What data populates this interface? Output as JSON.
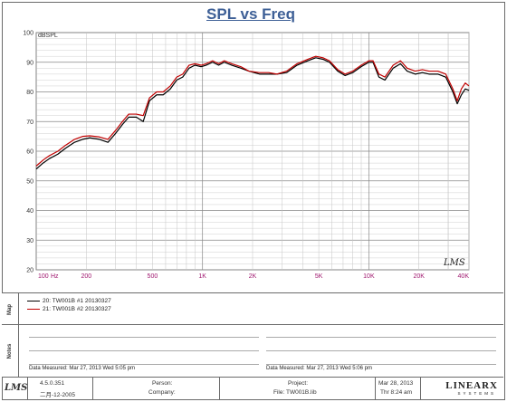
{
  "chart_data": {
    "type": "line",
    "title": "SPL vs Freq",
    "ylabel": "dBSPL",
    "xscale": "log",
    "xlim": [
      100,
      40000
    ],
    "ylim": [
      20,
      100
    ],
    "ytick_step": 10,
    "yticks": [
      "20",
      "30",
      "40",
      "50",
      "60",
      "70",
      "80",
      "90",
      "100"
    ],
    "xticks": [
      {
        "label": "100",
        "value": 100
      },
      {
        "label": "200",
        "value": 200
      },
      {
        "label": "500",
        "value": 500
      },
      {
        "label": "1K",
        "value": 1000
      },
      {
        "label": "2K",
        "value": 2000
      },
      {
        "label": "5K",
        "value": 5000
      },
      {
        "label": "10K",
        "value": 10000
      },
      {
        "label": "20K",
        "value": 20000
      },
      {
        "label": "40K",
        "value": 40000
      }
    ],
    "x_unit_label": "Hz",
    "grid": true,
    "series": [
      {
        "name": "20: TW001B  #1  20130327",
        "color": "#000000",
        "points": [
          [
            100,
            54
          ],
          [
            110,
            56
          ],
          [
            120,
            57.5
          ],
          [
            135,
            59
          ],
          [
            150,
            61
          ],
          [
            170,
            63
          ],
          [
            190,
            64
          ],
          [
            210,
            64.5
          ],
          [
            240,
            64
          ],
          [
            270,
            63
          ],
          [
            300,
            66
          ],
          [
            330,
            69
          ],
          [
            360,
            71.5
          ],
          [
            400,
            71.5
          ],
          [
            440,
            70
          ],
          [
            480,
            77
          ],
          [
            530,
            79
          ],
          [
            580,
            79
          ],
          [
            640,
            81
          ],
          [
            700,
            84
          ],
          [
            760,
            85
          ],
          [
            830,
            88
          ],
          [
            900,
            89
          ],
          [
            980,
            88.5
          ],
          [
            1050,
            89
          ],
          [
            1150,
            90
          ],
          [
            1250,
            89
          ],
          [
            1350,
            90
          ],
          [
            1500,
            89
          ],
          [
            1700,
            88
          ],
          [
            1900,
            87
          ],
          [
            2200,
            86
          ],
          [
            2500,
            86
          ],
          [
            2800,
            86
          ],
          [
            3200,
            86.5
          ],
          [
            3700,
            89
          ],
          [
            4300,
            90.5
          ],
          [
            4800,
            91.5
          ],
          [
            5300,
            91
          ],
          [
            5800,
            90
          ],
          [
            6500,
            87
          ],
          [
            7200,
            85.5
          ],
          [
            8000,
            86.5
          ],
          [
            9000,
            88.5
          ],
          [
            10000,
            90
          ],
          [
            10600,
            90
          ],
          [
            11500,
            85
          ],
          [
            12500,
            84
          ],
          [
            14000,
            88
          ],
          [
            15500,
            89.5
          ],
          [
            17000,
            87
          ],
          [
            19000,
            86
          ],
          [
            21000,
            86.5
          ],
          [
            23000,
            86
          ],
          [
            26000,
            86
          ],
          [
            29000,
            85
          ],
          [
            32000,
            80
          ],
          [
            34000,
            76
          ],
          [
            36000,
            79
          ],
          [
            38000,
            81
          ],
          [
            40000,
            80.5
          ]
        ]
      },
      {
        "name": "21: TW001B  #2  20130327",
        "color": "#c00000",
        "points": [
          [
            100,
            55
          ],
          [
            110,
            57
          ],
          [
            120,
            58.5
          ],
          [
            135,
            60
          ],
          [
            150,
            62
          ],
          [
            170,
            64
          ],
          [
            190,
            65
          ],
          [
            210,
            65.2
          ],
          [
            240,
            64.8
          ],
          [
            270,
            64
          ],
          [
            300,
            67
          ],
          [
            330,
            70
          ],
          [
            360,
            72.5
          ],
          [
            400,
            72.5
          ],
          [
            440,
            72
          ],
          [
            480,
            78
          ],
          [
            530,
            80
          ],
          [
            580,
            80
          ],
          [
            640,
            82
          ],
          [
            700,
            85
          ],
          [
            760,
            86
          ],
          [
            830,
            89
          ],
          [
            900,
            89.5
          ],
          [
            980,
            89
          ],
          [
            1050,
            89.5
          ],
          [
            1150,
            90.5
          ],
          [
            1250,
            89.5
          ],
          [
            1350,
            90.5
          ],
          [
            1500,
            89.5
          ],
          [
            1700,
            88.5
          ],
          [
            1900,
            87
          ],
          [
            2200,
            86.5
          ],
          [
            2500,
            86.5
          ],
          [
            2800,
            86
          ],
          [
            3200,
            87
          ],
          [
            3700,
            89.5
          ],
          [
            4300,
            91
          ],
          [
            4800,
            92
          ],
          [
            5300,
            91.5
          ],
          [
            5800,
            90.5
          ],
          [
            6500,
            87.5
          ],
          [
            7200,
            86
          ],
          [
            8000,
            87
          ],
          [
            9000,
            89
          ],
          [
            10000,
            90.5
          ],
          [
            10600,
            90.5
          ],
          [
            11500,
            86
          ],
          [
            12500,
            85
          ],
          [
            14000,
            89
          ],
          [
            15500,
            90.5
          ],
          [
            17000,
            88
          ],
          [
            19000,
            87
          ],
          [
            21000,
            87.5
          ],
          [
            23000,
            87
          ],
          [
            26000,
            87
          ],
          [
            29000,
            86
          ],
          [
            32000,
            81
          ],
          [
            34000,
            77
          ],
          [
            36000,
            81
          ],
          [
            38000,
            83
          ],
          [
            40000,
            82
          ]
        ]
      }
    ]
  },
  "watermark": "LMS",
  "panels": {
    "map_label": "Map",
    "notes_label": "Notes",
    "measured_left": "Data Measured: Mar 27, 2013  Wed  5:05 pm",
    "measured_right": "Data Measured: Mar 27, 2013  Wed  5:06 pm"
  },
  "footer": {
    "logo": "LMS",
    "version": "4.5.0.351",
    "date_code": "二月-12-2005",
    "person_label": "Person:",
    "company_label": "Company:",
    "project_label": "Project:",
    "file_label": "File: TW001B.lib",
    "date": "Mar 28, 2013",
    "time": "Thr  8:24 am",
    "brand": "LINEARX",
    "brand_sub": "SYSTEMS"
  }
}
